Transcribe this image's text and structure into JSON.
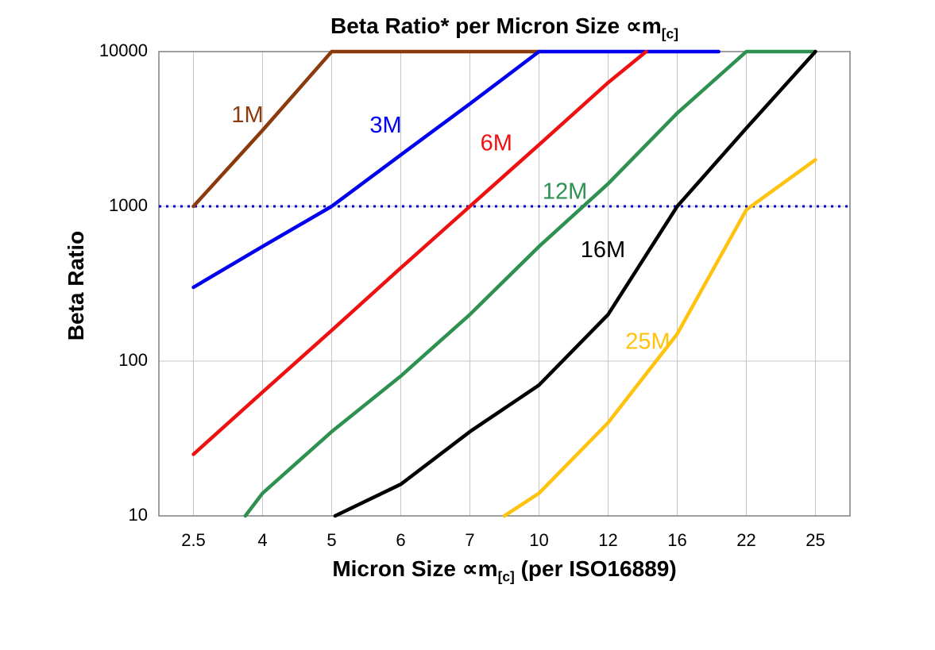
{
  "title": {
    "main": "Beta Ratio* per Micron Size ∝m",
    "sub": "[c]"
  },
  "y_axis_title": "Beta Ratio",
  "x_axis_title": {
    "main": "Micron Size ∝m",
    "sub": "[c]",
    "tail": " (per ISO16889)"
  },
  "chart_data": {
    "type": "line",
    "x_categories": [
      "2.5",
      "4",
      "5",
      "6",
      "7",
      "10",
      "12",
      "16",
      "22",
      "25"
    ],
    "y_axis": {
      "scale": "log",
      "range": [
        10,
        10000
      ],
      "ticks": [
        10,
        100,
        1000,
        10000
      ],
      "tick_labels": [
        "10",
        "100",
        "1000",
        "10000"
      ]
    },
    "grid": "on",
    "colors": {
      "grid": "#c6c6c6",
      "border": "#808080",
      "text": "#000000"
    },
    "reference_line": {
      "value": 1000,
      "color": "#0000cc",
      "style": "dotted"
    },
    "series": [
      {
        "name": "1M",
        "color": "#8a3a0b",
        "label_pos": [
          0.55,
          3500
        ],
        "points": [
          [
            0,
            1000
          ],
          [
            1,
            3100
          ],
          [
            2,
            10000
          ],
          [
            5,
            10000
          ]
        ]
      },
      {
        "name": "3M",
        "color": "#0000ee",
        "label_pos": [
          2.55,
          3000
        ],
        "points": [
          [
            0,
            300
          ],
          [
            1,
            550
          ],
          [
            2,
            1000
          ],
          [
            3,
            2150
          ],
          [
            4,
            4600
          ],
          [
            5,
            10000
          ],
          [
            7.6,
            10000
          ]
        ]
      },
      {
        "name": "6M",
        "color": "#ee1111",
        "label_pos": [
          4.15,
          2300
        ],
        "points": [
          [
            0,
            25
          ],
          [
            1,
            63
          ],
          [
            2,
            158
          ],
          [
            3,
            400
          ],
          [
            4,
            1000
          ],
          [
            5,
            2500
          ],
          [
            6,
            6300
          ],
          [
            6.55,
            10000
          ]
        ]
      },
      {
        "name": "12M",
        "color": "#2e9150",
        "label_pos": [
          5.05,
          1120
        ],
        "points": [
          [
            0.75,
            10
          ],
          [
            1,
            14
          ],
          [
            2,
            35
          ],
          [
            3,
            80
          ],
          [
            4,
            200
          ],
          [
            5,
            550
          ],
          [
            6,
            1400
          ],
          [
            7,
            4000
          ],
          [
            8,
            10000
          ],
          [
            9,
            10000
          ]
        ]
      },
      {
        "name": "16M",
        "color": "#000000",
        "label_pos": [
          5.6,
          470
        ],
        "points": [
          [
            2.05,
            10
          ],
          [
            3,
            16
          ],
          [
            4,
            35
          ],
          [
            5,
            70
          ],
          [
            6,
            200
          ],
          [
            7,
            1000
          ],
          [
            8,
            3200
          ],
          [
            9,
            10000
          ]
        ]
      },
      {
        "name": "25M",
        "color": "#ffc20e",
        "label_pos": [
          6.25,
          120
        ],
        "points": [
          [
            4.5,
            10
          ],
          [
            5,
            14
          ],
          [
            6,
            40
          ],
          [
            7,
            150
          ],
          [
            8,
            950
          ],
          [
            9,
            2000
          ]
        ]
      }
    ]
  }
}
